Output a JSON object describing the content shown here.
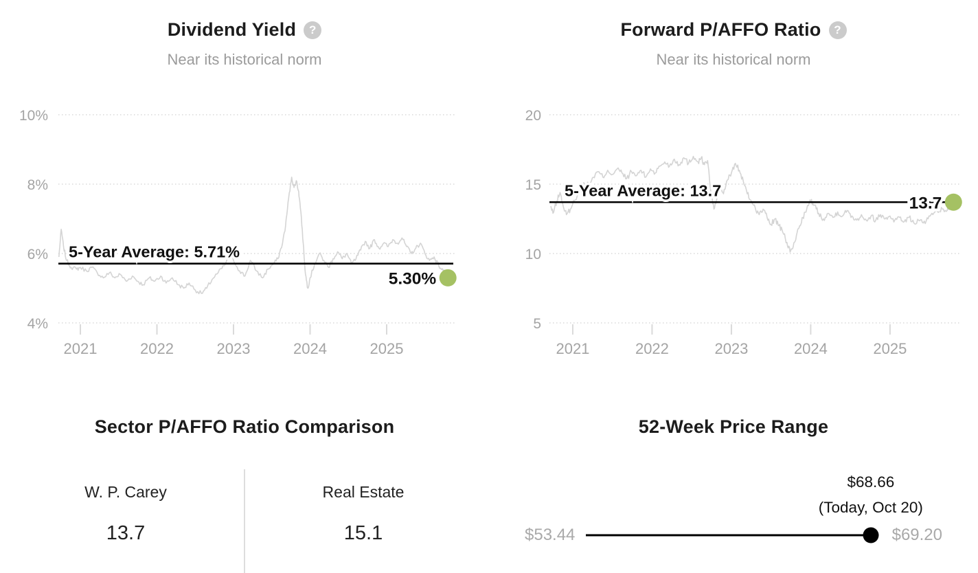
{
  "colors": {
    "accent_green": "#a5c163",
    "series_gray": "#d4d4d4",
    "axis_text": "#a4a4a4",
    "grid_gray": "#d9d9d9",
    "average_line": "#000000",
    "ink": "#1c1c1c",
    "muted": "#9b9b9b",
    "divider": "#dddddd",
    "help_icon_bg": "#cbcbcb"
  },
  "chart_data": [
    {
      "type": "line",
      "id": "dividend-yield",
      "title": "Dividend Yield",
      "subtitle": "Near its historical norm",
      "help_icon": "question-mark-icon",
      "legend": "none",
      "grid": "horizontal-dotted",
      "line_color": "#d4d4d4",
      "marker_color": "#a5c163",
      "xlim": [
        2020.713,
        2025.87
      ],
      "ylim": [
        4,
        10
      ],
      "x_ticks": [
        {
          "value": 2021,
          "label": "2021"
        },
        {
          "value": 2022,
          "label": "2022"
        },
        {
          "value": 2023,
          "label": "2023"
        },
        {
          "value": 2024,
          "label": "2024"
        },
        {
          "value": 2025,
          "label": "2025"
        }
      ],
      "y_ticks": [
        {
          "value": 10,
          "label": "10%"
        },
        {
          "value": 8,
          "label": "8%"
        },
        {
          "value": 6,
          "label": "6%"
        },
        {
          "value": 4,
          "label": "4%"
        }
      ],
      "average": {
        "value": 5.71,
        "label": "5-Year Average: 5.71%"
      },
      "current": {
        "value": 5.3,
        "label": "5.30%"
      },
      "x": [
        2020.72,
        2020.75,
        2020.78,
        2020.82,
        2020.88,
        2020.95,
        2021.0,
        2021.08,
        2021.15,
        2021.22,
        2021.3,
        2021.38,
        2021.45,
        2021.52,
        2021.6,
        2021.68,
        2021.75,
        2021.82,
        2021.9,
        2021.97,
        2022.05,
        2022.12,
        2022.2,
        2022.28,
        2022.35,
        2022.42,
        2022.5,
        2022.58,
        2022.65,
        2022.72,
        2022.8,
        2022.88,
        2022.95,
        2023.0,
        2023.08,
        2023.15,
        2023.22,
        2023.3,
        2023.38,
        2023.45,
        2023.52,
        2023.58,
        2023.64,
        2023.68,
        2023.72,
        2023.76,
        2023.79,
        2023.82,
        2023.85,
        2023.88,
        2023.91,
        2023.94,
        2023.97,
        2024.0,
        2024.06,
        2024.12,
        2024.18,
        2024.24,
        2024.3,
        2024.36,
        2024.42,
        2024.48,
        2024.54,
        2024.6,
        2024.66,
        2024.72,
        2024.78,
        2024.84,
        2024.9,
        2024.96,
        2025.02,
        2025.08,
        2025.14,
        2025.2,
        2025.26,
        2025.32,
        2025.38,
        2025.44,
        2025.5,
        2025.56,
        2025.62,
        2025.68,
        2025.74,
        2025.78,
        2025.8
      ],
      "y": [
        5.9,
        6.7,
        6.2,
        5.8,
        5.6,
        5.55,
        5.6,
        5.5,
        5.6,
        5.45,
        5.3,
        5.45,
        5.3,
        5.4,
        5.2,
        5.35,
        5.2,
        5.1,
        5.3,
        5.2,
        5.35,
        5.15,
        5.3,
        5.1,
        5.0,
        5.15,
        4.95,
        4.85,
        5.0,
        5.25,
        5.45,
        5.65,
        5.95,
        5.8,
        5.5,
        5.35,
        5.8,
        5.5,
        5.3,
        5.55,
        5.7,
        5.85,
        6.3,
        6.8,
        7.6,
        8.2,
        7.9,
        8.1,
        7.8,
        7.2,
        6.3,
        5.4,
        5.0,
        5.3,
        5.7,
        6.0,
        5.8,
        5.6,
        5.85,
        6.05,
        5.85,
        6.0,
        5.7,
        5.85,
        6.1,
        6.35,
        6.15,
        6.4,
        6.15,
        6.3,
        6.2,
        6.4,
        6.3,
        6.45,
        6.2,
        6.0,
        6.15,
        6.3,
        6.0,
        5.8,
        5.9,
        5.65,
        5.5,
        5.38,
        5.3
      ]
    },
    {
      "type": "line",
      "id": "forward-p-affo-ratio",
      "title": "Forward P/AFFO Ratio",
      "subtitle": "Near its historical norm",
      "help_icon": "question-mark-icon",
      "legend": "none",
      "grid": "horizontal-dotted",
      "line_color": "#d4d4d4",
      "marker_color": "#a5c163",
      "xlim": [
        2020.706,
        2025.858
      ],
      "ylim": [
        5,
        20
      ],
      "x_ticks": [
        {
          "value": 2021,
          "label": "2021"
        },
        {
          "value": 2022,
          "label": "2022"
        },
        {
          "value": 2023,
          "label": "2023"
        },
        {
          "value": 2024,
          "label": "2024"
        },
        {
          "value": 2025,
          "label": "2025"
        }
      ],
      "y_ticks": [
        {
          "value": 20,
          "label": "20"
        },
        {
          "value": 15,
          "label": "15"
        },
        {
          "value": 10,
          "label": "10"
        },
        {
          "value": 5,
          "label": "5"
        }
      ],
      "average": {
        "value": 13.7,
        "label": "5-Year Average: 13.7"
      },
      "current": {
        "value": 13.7,
        "label": "13.7"
      },
      "x": [
        2020.72,
        2020.75,
        2020.8,
        2020.84,
        2020.88,
        2020.92,
        2020.97,
        2021.02,
        2021.08,
        2021.14,
        2021.2,
        2021.26,
        2021.32,
        2021.38,
        2021.44,
        2021.5,
        2021.56,
        2021.62,
        2021.68,
        2021.74,
        2021.8,
        2021.86,
        2021.92,
        2021.98,
        2022.04,
        2022.1,
        2022.16,
        2022.22,
        2022.28,
        2022.34,
        2022.4,
        2022.46,
        2022.52,
        2022.58,
        2022.62,
        2022.66,
        2022.7,
        2022.74,
        2022.78,
        2022.82,
        2022.86,
        2022.9,
        2022.95,
        2023.0,
        2023.05,
        2023.1,
        2023.15,
        2023.2,
        2023.25,
        2023.3,
        2023.35,
        2023.4,
        2023.45,
        2023.5,
        2023.55,
        2023.6,
        2023.65,
        2023.7,
        2023.74,
        2023.78,
        2023.82,
        2023.86,
        2023.9,
        2023.95,
        2024.0,
        2024.05,
        2024.1,
        2024.16,
        2024.22,
        2024.28,
        2024.34,
        2024.4,
        2024.46,
        2024.52,
        2024.58,
        2024.64,
        2024.7,
        2024.76,
        2024.82,
        2024.88,
        2024.94,
        2025.0,
        2025.06,
        2025.12,
        2025.18,
        2025.24,
        2025.3,
        2025.36,
        2025.42,
        2025.48,
        2025.54,
        2025.6,
        2025.66,
        2025.72,
        2025.76,
        2025.8
      ],
      "y": [
        13.4,
        12.9,
        13.8,
        14.4,
        13.4,
        12.8,
        13.2,
        13.8,
        14.5,
        15.1,
        14.9,
        15.5,
        15.9,
        15.5,
        16.0,
        15.7,
        16.1,
        15.8,
        15.4,
        15.9,
        15.6,
        16.0,
        15.5,
        16.1,
        15.8,
        16.3,
        16.6,
        16.3,
        16.8,
        16.4,
        16.9,
        16.5,
        17.0,
        16.6,
        16.9,
        16.4,
        16.7,
        14.5,
        13.2,
        14.0,
        14.8,
        14.3,
        15.3,
        15.8,
        16.5,
        16.0,
        15.2,
        14.3,
        13.8,
        13.3,
        12.8,
        13.2,
        12.6,
        12.1,
        12.5,
        12.0,
        11.5,
        10.8,
        10.1,
        10.5,
        11.3,
        12.0,
        12.6,
        13.2,
        13.8,
        13.5,
        12.9,
        12.5,
        12.9,
        12.6,
        13.0,
        12.7,
        13.1,
        12.7,
        12.4,
        12.8,
        12.4,
        12.7,
        12.4,
        12.8,
        12.5,
        12.7,
        12.4,
        12.6,
        12.3,
        12.6,
        12.2,
        12.4,
        12.2,
        12.5,
        12.8,
        13.0,
        13.2,
        13.1,
        13.4,
        13.7
      ]
    }
  ],
  "sector_comparison": {
    "title": "Sector P/AFFO Ratio Comparison",
    "items": [
      {
        "label": "W. P. Carey",
        "value": "13.7"
      },
      {
        "label": "Real Estate",
        "value": "15.1"
      }
    ]
  },
  "price_range": {
    "title": "52-Week Price Range",
    "low": {
      "value": 53.44,
      "label": "$53.44"
    },
    "high": {
      "value": 69.2,
      "label": "$69.20"
    },
    "current": {
      "value": 68.66,
      "label": "$68.66",
      "sublabel": "(Today, Oct 20)"
    }
  }
}
